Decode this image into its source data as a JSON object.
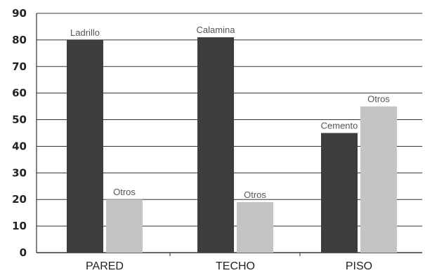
{
  "chart_data": {
    "type": "bar",
    "categories": [
      "PARED",
      "TECHO",
      "PISO"
    ],
    "series": [
      {
        "values": [
          80,
          81,
          45
        ],
        "color": "#3d3d3d",
        "point_labels": [
          "Ladrillo",
          "Calamina",
          "Cemento"
        ]
      },
      {
        "values": [
          20,
          19,
          55
        ],
        "color": "#c4c4c4",
        "point_labels": [
          "Otros",
          "Otros",
          "Otros"
        ]
      }
    ],
    "ylim": [
      0,
      90
    ],
    "yticks": [
      0,
      10,
      20,
      30,
      40,
      50,
      60,
      70,
      80,
      90
    ],
    "grid": true,
    "gridline_color": "#333333",
    "title": "",
    "xlabel": "",
    "ylabel": ""
  }
}
